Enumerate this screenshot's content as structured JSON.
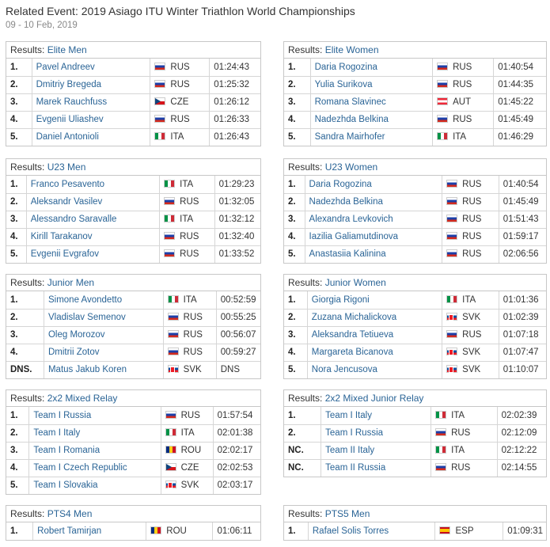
{
  "header": {
    "title": "Related Event: 2019 Asiago ITU Winter Triathlon World Championships",
    "date": "09 - 10 Feb, 2019"
  },
  "results_prefix": "Results:",
  "panels": [
    {
      "id": "elite-men",
      "event": "Elite Men",
      "cols": [
        30,
        140,
        70,
        60
      ],
      "rows": [
        {
          "rank": "1.",
          "name": "Pavel Andreev",
          "country": "RUS",
          "result": "01:24:43"
        },
        {
          "rank": "2.",
          "name": "Dmitriy Bregeda",
          "country": "RUS",
          "result": "01:25:32"
        },
        {
          "rank": "3.",
          "name": "Marek Rauchfuss",
          "country": "CZE",
          "result": "01:26:12"
        },
        {
          "rank": "4.",
          "name": "Evgenii Uliashev",
          "country": "RUS",
          "result": "01:26:33"
        },
        {
          "rank": "5.",
          "name": "Daniel Antonioli",
          "country": "ITA",
          "result": "01:26:43"
        }
      ]
    },
    {
      "id": "elite-women",
      "event": "Elite Women",
      "cols": [
        30,
        140,
        70,
        60
      ],
      "rows": [
        {
          "rank": "1.",
          "name": "Daria Rogozina",
          "country": "RUS",
          "result": "01:40:54"
        },
        {
          "rank": "2.",
          "name": "Yulia Surikova",
          "country": "RUS",
          "result": "01:44:35"
        },
        {
          "rank": "3.",
          "name": "Romana Slavinec",
          "country": "AUT",
          "result": "01:45:22"
        },
        {
          "rank": "4.",
          "name": "Nadezhda Belkina",
          "country": "RUS",
          "result": "01:45:49"
        },
        {
          "rank": "5.",
          "name": "Sandra Mairhofer",
          "country": "ITA",
          "result": "01:46:29"
        }
      ]
    },
    {
      "id": "u23-men",
      "event": "U23 Men",
      "cols": [
        24,
        160,
        66,
        55
      ],
      "rows": [
        {
          "rank": "1.",
          "name": "Franco Pesavento",
          "country": "ITA",
          "result": "01:29:23"
        },
        {
          "rank": "2.",
          "name": "Aleksandr Vasilev",
          "country": "RUS",
          "result": "01:32:05"
        },
        {
          "rank": "3.",
          "name": "Alessandro Saravalle",
          "country": "ITA",
          "result": "01:32:12"
        },
        {
          "rank": "4.",
          "name": "Kirill Tarakanov",
          "country": "RUS",
          "result": "01:32:40"
        },
        {
          "rank": "5.",
          "name": "Evgenii Evgrafov",
          "country": "RUS",
          "result": "01:33:52"
        }
      ]
    },
    {
      "id": "u23-women",
      "event": "U23 Women",
      "cols": [
        24,
        160,
        66,
        55
      ],
      "rows": [
        {
          "rank": "1.",
          "name": "Daria Rogozina",
          "country": "RUS",
          "result": "01:40:54"
        },
        {
          "rank": "2.",
          "name": "Nadezhda Belkina",
          "country": "RUS",
          "result": "01:45:49"
        },
        {
          "rank": "3.",
          "name": "Alexandra Levkovich",
          "country": "RUS",
          "result": "01:51:43"
        },
        {
          "rank": "4.",
          "name": "Iazilia Galiamutdinova",
          "country": "RUS",
          "result": "01:59:17"
        },
        {
          "rank": "5.",
          "name": "Anastasiia Kalinina",
          "country": "RUS",
          "result": "02:06:56"
        }
      ]
    },
    {
      "id": "junior-men",
      "event": "Junior Men",
      "cols": [
        46,
        146,
        65,
        54
      ],
      "rows": [
        {
          "rank": "1.",
          "name": "Simone Avondetto",
          "country": "ITA",
          "result": "00:52:59"
        },
        {
          "rank": "2.",
          "name": "Vladislav Semenov",
          "country": "RUS",
          "result": "00:55:25"
        },
        {
          "rank": "3.",
          "name": "Oleg Morozov",
          "country": "RUS",
          "result": "00:56:07"
        },
        {
          "rank": "4.",
          "name": "Dmitrii Zotov",
          "country": "RUS",
          "result": "00:59:27"
        },
        {
          "rank": "DNS.",
          "name": "Matus Jakub Koren",
          "country": "SVK",
          "result": "DNS"
        }
      ]
    },
    {
      "id": "junior-women",
      "event": "Junior Women",
      "cols": [
        27,
        157,
        66,
        55
      ],
      "rows": [
        {
          "rank": "1.",
          "name": "Giorgia Rigoni",
          "country": "ITA",
          "result": "01:01:36"
        },
        {
          "rank": "2.",
          "name": "Zuzana Michalickova",
          "country": "SVK",
          "result": "01:02:39"
        },
        {
          "rank": "3.",
          "name": "Aleksandra Tetiueva",
          "country": "RUS",
          "result": "01:07:18"
        },
        {
          "rank": "4.",
          "name": "Margareta Bicanova",
          "country": "SVK",
          "result": "01:07:47"
        },
        {
          "rank": "5.",
          "name": "Nora Jencusova",
          "country": "SVK",
          "result": "01:10:07"
        }
      ]
    },
    {
      "id": "mixed-relay",
      "event": "2x2 Mixed Relay",
      "cols": [
        28,
        161,
        64,
        58
      ],
      "rows": [
        {
          "rank": "1.",
          "name": "Team I Russia",
          "country": "RUS",
          "result": "01:57:54"
        },
        {
          "rank": "2.",
          "name": "Team I Italy",
          "country": "ITA",
          "result": "02:01:38"
        },
        {
          "rank": "3.",
          "name": "Team I Romania",
          "country": "ROU",
          "result": "02:02:17"
        },
        {
          "rank": "4.",
          "name": "Team I Czech Republic",
          "country": "CZE",
          "result": "02:02:53"
        },
        {
          "rank": "5.",
          "name": "Team I Slovakia",
          "country": "SVK",
          "result": "02:03:17"
        }
      ]
    },
    {
      "id": "mixed-junior-relay",
      "event": "2x2 Mixed Junior Relay",
      "cols": [
        43,
        128,
        77,
        57
      ],
      "rows": [
        {
          "rank": "1.",
          "name": "Team I Italy",
          "country": "ITA",
          "result": "02:02:39"
        },
        {
          "rank": "2.",
          "name": "Team I Russia",
          "country": "RUS",
          "result": "02:12:09"
        },
        {
          "rank": "NC.",
          "name": "Team II Italy",
          "country": "ITA",
          "result": "02:12:22"
        },
        {
          "rank": "NC.",
          "name": "Team II Russia",
          "country": "RUS",
          "result": "02:14:55"
        }
      ]
    },
    {
      "id": "pts4-men",
      "event": "PTS4 Men",
      "cols": [
        32,
        136,
        80,
        57
      ],
      "rows": [
        {
          "rank": "1.",
          "name": "Robert Tamirjan",
          "country": "ROU",
          "result": "01:06:11"
        }
      ]
    },
    {
      "id": "pts5-men",
      "event": "PTS5 Men",
      "cols": [
        28,
        148,
        79,
        50
      ],
      "rows": [
        {
          "rank": "1.",
          "name": "Rafael Solis Torres",
          "country": "ESP",
          "result": "01:09:31"
        }
      ]
    }
  ]
}
